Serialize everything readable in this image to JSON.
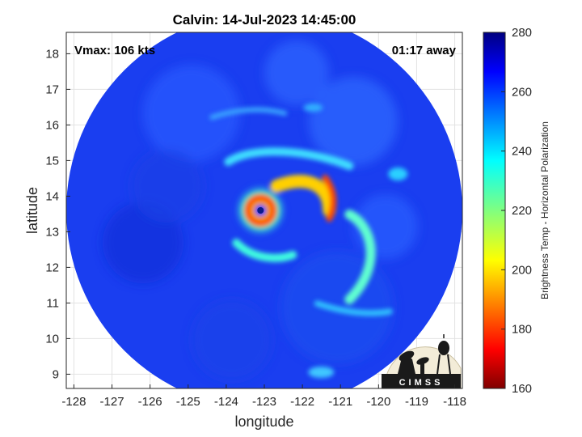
{
  "title": "Calvin: 14-Jul-2023 14:45:00",
  "annotations": {
    "vmax": "Vmax: 106 kts",
    "time_away": "01:17 away"
  },
  "axes": {
    "xlabel": "longitude",
    "ylabel": "latitude",
    "xlim": [
      -128.2,
      -117.8
    ],
    "ylim": [
      8.6,
      18.6
    ],
    "xticks": [
      -128,
      -127,
      -126,
      -125,
      -124,
      -123,
      -122,
      -121,
      -120,
      -119,
      -118
    ],
    "yticks": [
      9,
      10,
      11,
      12,
      13,
      14,
      15,
      16,
      17,
      18
    ],
    "grid": true
  },
  "colorbar": {
    "label": "Brightness Temp - Horizontal Polarization",
    "min": 160,
    "max": 280,
    "ticks": [
      160,
      180,
      200,
      220,
      240,
      260,
      280
    ],
    "colormap": "jet"
  },
  "storm": {
    "eye_lon": -123.1,
    "eye_lat": 13.6,
    "swath_center_lon": -123.0,
    "swath_center_lat": 13.6,
    "swath_radius_deg": 5.2
  },
  "logo": {
    "text": "CIMSS"
  },
  "chart_data": {
    "type": "heatmap",
    "title": "Calvin: 14-Jul-2023 14:45:00",
    "xlabel": "longitude",
    "ylabel": "latitude",
    "xlim": [
      -128.2,
      -117.8
    ],
    "ylim": [
      8.6,
      18.6
    ],
    "value_range": [
      160,
      280
    ],
    "colorbar_label": "Brightness Temp - Horizontal Polarization"
  }
}
